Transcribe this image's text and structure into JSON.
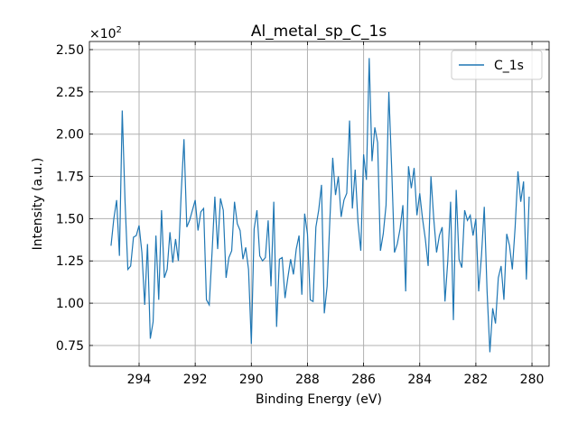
{
  "chart_data": {
    "type": "line",
    "title": "Al_metal_sp_C_1s",
    "xlabel": "Binding Energy (eV)",
    "ylabel": "Intensity (a.u.)",
    "y_scale_label": {
      "base": "×10",
      "exponent": "2"
    },
    "x": [
      295.0,
      294.9,
      294.8,
      294.7,
      294.6,
      294.5,
      294.4,
      294.3,
      294.2,
      294.1,
      294.0,
      293.9,
      293.8,
      293.7,
      293.6,
      293.5,
      293.4,
      293.3,
      293.2,
      293.1,
      293.0,
      292.9,
      292.8,
      292.7,
      292.6,
      292.5,
      292.4,
      292.3,
      292.2,
      292.1,
      292.0,
      291.9,
      291.8,
      291.7,
      291.6,
      291.5,
      291.4,
      291.3,
      291.2,
      291.1,
      291.0,
      290.9,
      290.8,
      290.7,
      290.6,
      290.5,
      290.4,
      290.3,
      290.2,
      290.1,
      290.0,
      289.9,
      289.8,
      289.7,
      289.6,
      289.5,
      289.4,
      289.3,
      289.2,
      289.1,
      289.0,
      288.9,
      288.8,
      288.7,
      288.6,
      288.5,
      288.4,
      288.3,
      288.2,
      288.1,
      288.0,
      287.9,
      287.8,
      287.7,
      287.6,
      287.5,
      287.4,
      287.3,
      287.2,
      287.1,
      287.0,
      286.9,
      286.8,
      286.7,
      286.6,
      286.5,
      286.4,
      286.3,
      286.2,
      286.1,
      286.0,
      285.9,
      285.8,
      285.7,
      285.6,
      285.5,
      285.4,
      285.3,
      285.2,
      285.1,
      285.0,
      284.9,
      284.8,
      284.7,
      284.6,
      284.5,
      284.4,
      284.3,
      284.2,
      284.1,
      284.0,
      283.9,
      283.8,
      283.7,
      283.6,
      283.5,
      283.4,
      283.3,
      283.2,
      283.1,
      283.0,
      282.9,
      282.8,
      282.7,
      282.6,
      282.5,
      282.4,
      282.3,
      282.2,
      282.1,
      282.0,
      281.9,
      281.8,
      281.7,
      281.6,
      281.5,
      281.4,
      281.3,
      281.2,
      281.1,
      281.0,
      280.9,
      280.8,
      280.7,
      280.6,
      280.5,
      280.4,
      280.3,
      280.2,
      280.1
    ],
    "series": [
      {
        "name": "C_1s",
        "color": "#1f77b4",
        "values": [
          1.34,
          1.5,
          1.61,
          1.28,
          2.14,
          1.6,
          1.2,
          1.22,
          1.39,
          1.4,
          1.46,
          1.3,
          0.99,
          1.35,
          0.79,
          0.89,
          1.4,
          1.02,
          1.55,
          1.15,
          1.2,
          1.42,
          1.24,
          1.38,
          1.25,
          1.65,
          1.97,
          1.45,
          1.49,
          1.55,
          1.61,
          1.43,
          1.54,
          1.56,
          1.02,
          0.99,
          1.3,
          1.63,
          1.32,
          1.62,
          1.55,
          1.15,
          1.27,
          1.31,
          1.6,
          1.47,
          1.43,
          1.26,
          1.33,
          1.2,
          0.76,
          1.44,
          1.55,
          1.28,
          1.25,
          1.27,
          1.49,
          1.1,
          1.6,
          0.86,
          1.26,
          1.27,
          1.03,
          1.15,
          1.26,
          1.17,
          1.32,
          1.4,
          1.05,
          1.53,
          1.41,
          1.02,
          1.01,
          1.45,
          1.55,
          1.7,
          0.94,
          1.1,
          1.5,
          1.86,
          1.64,
          1.75,
          1.51,
          1.61,
          1.65,
          2.08,
          1.56,
          1.79,
          1.48,
          1.31,
          1.88,
          1.73,
          2.45,
          1.84,
          2.04,
          1.95,
          1.31,
          1.41,
          1.58,
          2.25,
          1.8,
          1.3,
          1.35,
          1.44,
          1.58,
          1.07,
          1.81,
          1.68,
          1.8,
          1.52,
          1.65,
          1.5,
          1.38,
          1.22,
          1.75,
          1.5,
          1.3,
          1.4,
          1.45,
          1.01,
          1.25,
          1.6,
          0.9,
          1.67,
          1.26,
          1.21,
          1.55,
          1.49,
          1.52,
          1.4,
          1.5,
          1.07,
          1.28,
          1.57,
          1.07,
          0.71,
          0.97,
          0.88,
          1.15,
          1.22,
          1.02,
          1.41,
          1.34,
          1.2,
          1.45,
          1.78,
          1.6,
          1.72,
          1.14,
          1.63
        ]
      }
    ],
    "xlim": [
      295.77,
      279.39
    ],
    "xticks": [
      294,
      292,
      290,
      288,
      286,
      284,
      282,
      280
    ],
    "ylim": [
      0.627,
      2.548
    ],
    "yticks": [
      0.75,
      {
        "value": 1,
        "label": "1.00"
      },
      1.25,
      {
        "value": 1.5,
        "label": "1.50"
      },
      1.75,
      {
        "value": 2,
        "label": "2.00"
      },
      2.25,
      {
        "value": 2.5,
        "label": "2.50"
      }
    ],
    "grid": true,
    "legend": "upper right"
  }
}
